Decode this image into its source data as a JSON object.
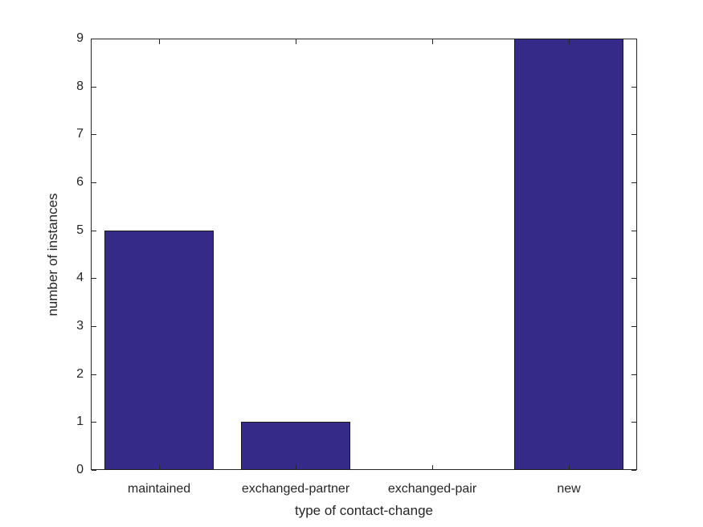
{
  "figure": {
    "background": "#ffffff"
  },
  "chart_data": {
    "type": "bar",
    "categories": [
      "maintained",
      "exchanged-partner",
      "exchanged-pair",
      "new"
    ],
    "values": [
      5,
      1,
      0,
      9
    ],
    "title": "",
    "xlabel": "type of contact-change",
    "ylabel": "number of instances",
    "ylim": [
      0,
      9
    ],
    "yticks": [
      0,
      1,
      2,
      3,
      4,
      5,
      6,
      7,
      8,
      9
    ],
    "bar_width_fraction": 0.8,
    "grid": false,
    "legend_position": "none",
    "colors": {
      "bar_fill": "#352A87",
      "bar_edge": "#1a1a1a",
      "axis": "#262626",
      "text": "#262626"
    }
  }
}
